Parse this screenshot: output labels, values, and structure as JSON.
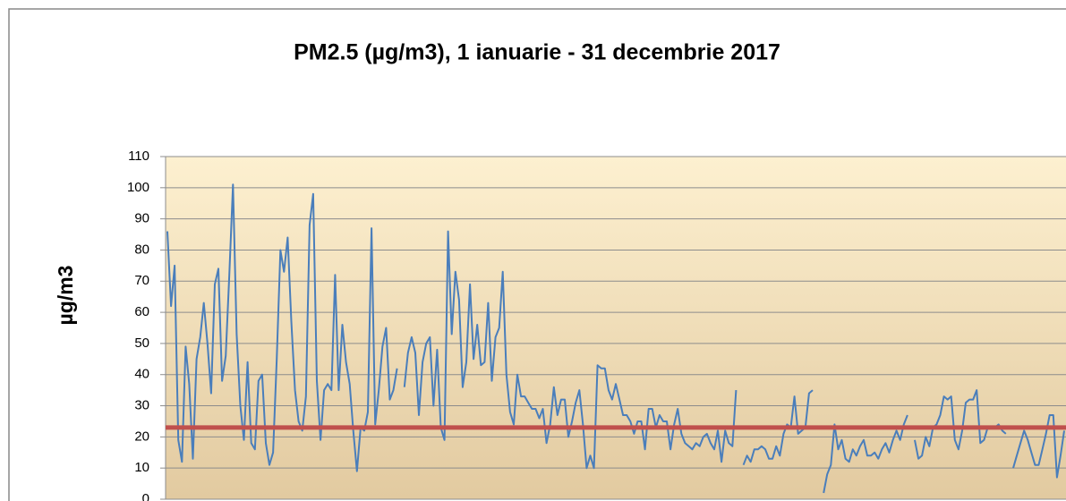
{
  "chart_data": {
    "type": "line",
    "title": "PM2.5 (µg/m3), 1 ianuarie - 31 decembrie 2017",
    "y_label": "µg/m3",
    "ylim": [
      0,
      110
    ],
    "yticks": [
      0,
      10,
      20,
      30,
      40,
      50,
      60,
      70,
      80,
      90,
      100,
      110
    ],
    "grid": true,
    "color": "#4a7ebb",
    "threshold": 23,
    "threshold_color": "#c0504d",
    "values": [
      86,
      62,
      75,
      19,
      12,
      49,
      37,
      13,
      45,
      52,
      63,
      50,
      34,
      69,
      74,
      38,
      46,
      72,
      101,
      53,
      30,
      19,
      44,
      18,
      16,
      38,
      40,
      18,
      11,
      15,
      45,
      80,
      73,
      84,
      57,
      35,
      25,
      22,
      33,
      88,
      98,
      38,
      19,
      35,
      37,
      35,
      72,
      35,
      56,
      44,
      37,
      22,
      9,
      23,
      22,
      28,
      87,
      24,
      35,
      49,
      55,
      32,
      35,
      42,
      null,
      36,
      47,
      52,
      47,
      27,
      44,
      50,
      52,
      30,
      48,
      23,
      19,
      86,
      53,
      73,
      64,
      36,
      44,
      69,
      45,
      56,
      43,
      44,
      63,
      38,
      52,
      55,
      73,
      40,
      28,
      24,
      40,
      33,
      33,
      31,
      29,
      29,
      26,
      29,
      18,
      24,
      36,
      27,
      32,
      32,
      20,
      25,
      31,
      35,
      24,
      10,
      14,
      10,
      43,
      42,
      42,
      35,
      32,
      37,
      32,
      27,
      27,
      25,
      21,
      25,
      25,
      16,
      29,
      29,
      23,
      27,
      25,
      25,
      16,
      24,
      29,
      21,
      18,
      17,
      16,
      18,
      17,
      20,
      21,
      18,
      16,
      22,
      12,
      22,
      18,
      17,
      35,
      null,
      11,
      14,
      12,
      16,
      16,
      17,
      16,
      13,
      13,
      17,
      14,
      21,
      24,
      23,
      33,
      21,
      22,
      23,
      34,
      35,
      null,
      null,
      2,
      8,
      11,
      24,
      16,
      19,
      13,
      12,
      16,
      14,
      17,
      19,
      14,
      14,
      15,
      13,
      16,
      18,
      15,
      19,
      22,
      19,
      24,
      27,
      null,
      19,
      13,
      14,
      20,
      17,
      23,
      24,
      27,
      33,
      32,
      33,
      19,
      16,
      22,
      31,
      32,
      32,
      35,
      18,
      19,
      23,
      23,
      23,
      24,
      22,
      21,
      null,
      10,
      14,
      18,
      22,
      19,
      15,
      11,
      11,
      16,
      21,
      27,
      27,
      7,
      14,
      22
    ]
  }
}
